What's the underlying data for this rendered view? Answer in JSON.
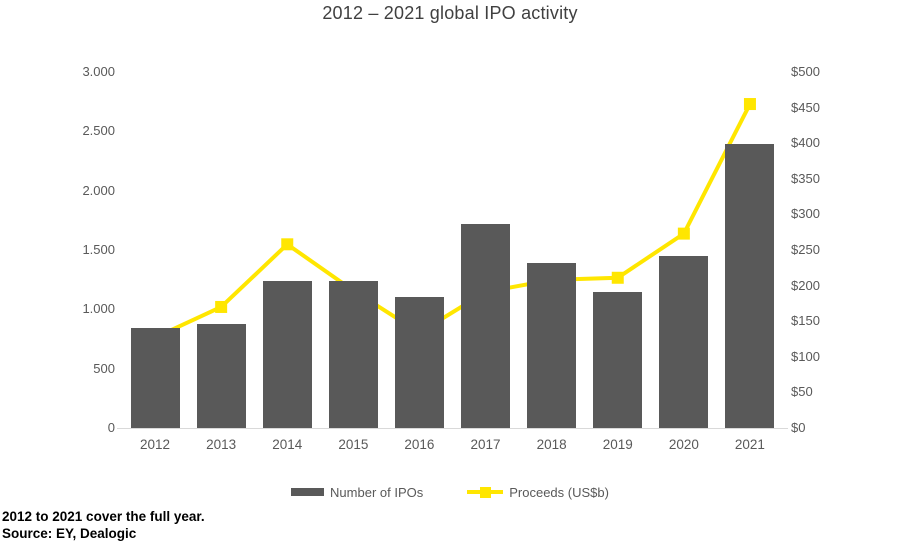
{
  "title": "2012 – 2021 global IPO activity",
  "legend": {
    "bars_label": "Number of IPOs",
    "line_label": "Proceeds (US$b)"
  },
  "footnote_line1": "2012 to 2021 cover the full year.",
  "footnote_line2": "Source: EY, Dealogic",
  "colors": {
    "bar": "#595959",
    "line": "#ffe600",
    "axis_text": "#595959",
    "title_text": "#404040",
    "baseline": "#d9d9d9"
  },
  "chart_data": {
    "type": "combo",
    "title": "2012 – 2021 global IPO activity",
    "categories": [
      "2012",
      "2013",
      "2014",
      "2015",
      "2016",
      "2017",
      "2018",
      "2019",
      "2020",
      "2021"
    ],
    "series": [
      {
        "name": "Number of IPOs",
        "type": "bar",
        "axis": "left",
        "values": [
          845,
          880,
          1240,
          1240,
          1105,
          1720,
          1390,
          1150,
          1450,
          2390
        ]
      },
      {
        "name": "Proceeds (US$b)",
        "type": "line",
        "axis": "right",
        "values": [
          127,
          170,
          258,
          193,
          134,
          191,
          208,
          211,
          273,
          455
        ]
      }
    ],
    "left_axis": {
      "min": 0,
      "max": 3000,
      "step": 500,
      "tick_labels": [
        "0",
        "500",
        "1.000",
        "1.500",
        "2.000",
        "2.500",
        "3.000"
      ]
    },
    "right_axis": {
      "min": 0,
      "max": 500,
      "step": 50,
      "tick_labels": [
        "$0",
        "$50",
        "$100",
        "$150",
        "$200",
        "$250",
        "$300",
        "$350",
        "$400",
        "$450",
        "$500"
      ]
    },
    "grid": false,
    "legend_position": "bottom"
  }
}
